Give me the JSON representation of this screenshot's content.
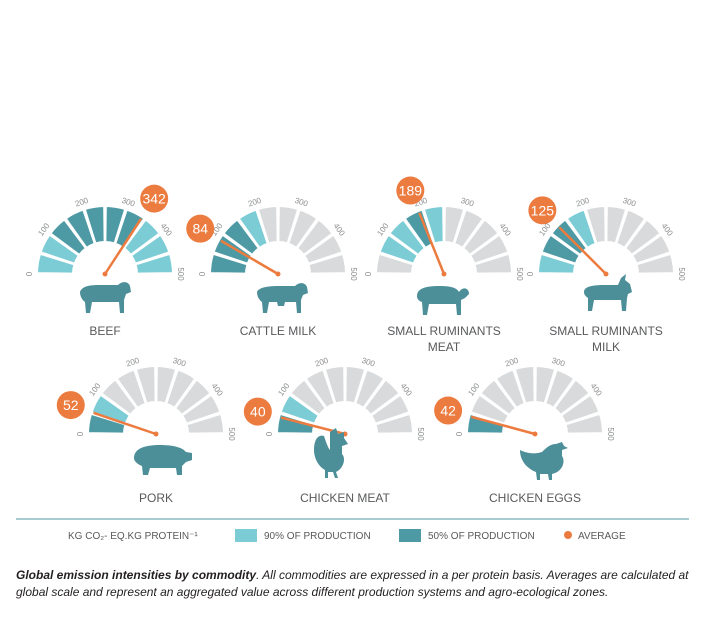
{
  "chart_data": {
    "type": "gauge",
    "scale": {
      "min": 0,
      "max": 500,
      "ticks": [
        0,
        100,
        200,
        300,
        400,
        500
      ]
    },
    "unit_label": "KG CO₂- EQ.KG PROTEIN⁻¹",
    "series": [
      {
        "name": "90% OF PRODUCTION",
        "color": "#7cccd6"
      },
      {
        "name": "50% OF PRODUCTION",
        "color": "#4d9aa5"
      },
      {
        "name": "AVERAGE",
        "color": "#ec7b3f"
      }
    ],
    "commodities": [
      {
        "label": "BEEF",
        "average": 342,
        "range90": [
          0,
          500
        ],
        "range50": [
          90,
          350
        ],
        "icon": "cow-icon"
      },
      {
        "label": "CATTLE MILK",
        "average": 84,
        "range90": [
          0,
          180
        ],
        "range50": [
          20,
          135
        ],
        "icon": "dairy-cow-icon"
      },
      {
        "label": "SMALL RUMINANTS MEAT",
        "average": 189,
        "range90": [
          60,
          250
        ],
        "range50": [
          140,
          220
        ],
        "icon": "sheep-icon"
      },
      {
        "label": "SMALL RUMINANTS MILK",
        "average": 125,
        "range90": [
          20,
          200
        ],
        "range50": [
          30,
          130
        ],
        "icon": "goat-icon"
      },
      {
        "label": "PORK",
        "average": 52,
        "range90": [
          10,
          110
        ],
        "range50": [
          20,
          70
        ],
        "icon": "pig-icon"
      },
      {
        "label": "CHICKEN MEAT",
        "average": 40,
        "range90": [
          0,
          95
        ],
        "range50": [
          10,
          55
        ],
        "icon": "rooster-icon"
      },
      {
        "label": "CHICKEN EGGS",
        "average": 42,
        "range90": [
          0,
          65
        ],
        "range50": [
          10,
          50
        ],
        "icon": "hen-icon"
      }
    ]
  },
  "caption": {
    "title": "Global emission intensities by commodity",
    "body": ". All commodities are expressed in a per protein basis. Averages are calculated at global scale and represent an aggregated value across different production systems and agro-ecological zones."
  }
}
